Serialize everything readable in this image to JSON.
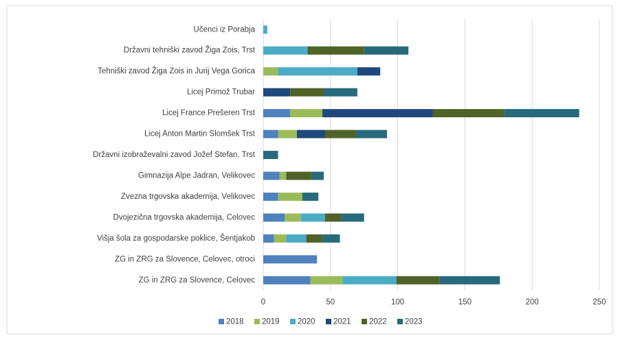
{
  "chart_data": {
    "type": "stacked-bar-horizontal",
    "categories": [
      "Učenci iz Porabja",
      "Državni tehniški zavod Žiga Zois, Trst",
      "Tehniški zavod Žiga Zois in Jurij Vega Gorica",
      "Licej Primož Trubar",
      "Licej France Prešeren Trst",
      "Licej Anton Martin Slomšek Trst",
      "Državni izobraževalni zavod Jožef Stefan, Trst",
      "Gimnazija Alpe Jadran, Velikovec",
      "Zvezna trgovska akademija, Velikovec",
      "Dvojezična trgovska akademija, Celovec",
      "Višja šola za gospodarske poklice, Šentjakob",
      "ZG in ZRG za Slovence, Celovec, otroci",
      "ZG in ZRG za Slovence, Celovec"
    ],
    "series": [
      {
        "name": "2018",
        "color": "#4f81bd",
        "values": [
          null,
          null,
          null,
          null,
          20,
          11,
          null,
          12,
          11,
          16,
          8,
          40,
          35
        ]
      },
      {
        "name": "2019",
        "color": "#9bbb59",
        "values": [
          null,
          null,
          11,
          null,
          24,
          14,
          null,
          5,
          18,
          12,
          9,
          null,
          24
        ]
      },
      {
        "name": "2020",
        "color": "#4bacc6",
        "values": [
          3,
          33,
          59,
          null,
          null,
          null,
          null,
          null,
          null,
          18,
          15,
          null,
          40
        ]
      },
      {
        "name": "2021",
        "color": "#1f497d",
        "values": [
          null,
          null,
          17,
          20,
          82,
          21,
          null,
          null,
          null,
          null,
          null,
          null,
          null
        ]
      },
      {
        "name": "2022",
        "color": "#4f6228",
        "values": [
          null,
          42,
          null,
          25,
          53,
          23,
          null,
          19,
          null,
          12,
          12,
          null,
          32
        ]
      },
      {
        "name": "2023",
        "color": "#276a7c",
        "values": [
          null,
          33,
          null,
          25,
          56,
          23,
          11,
          9,
          12,
          17,
          13,
          null,
          45
        ]
      }
    ],
    "xlim": [
      0,
      250
    ],
    "xticks": [
      0,
      50,
      100,
      150,
      200,
      250
    ],
    "grid": true,
    "legend": "bottom"
  }
}
